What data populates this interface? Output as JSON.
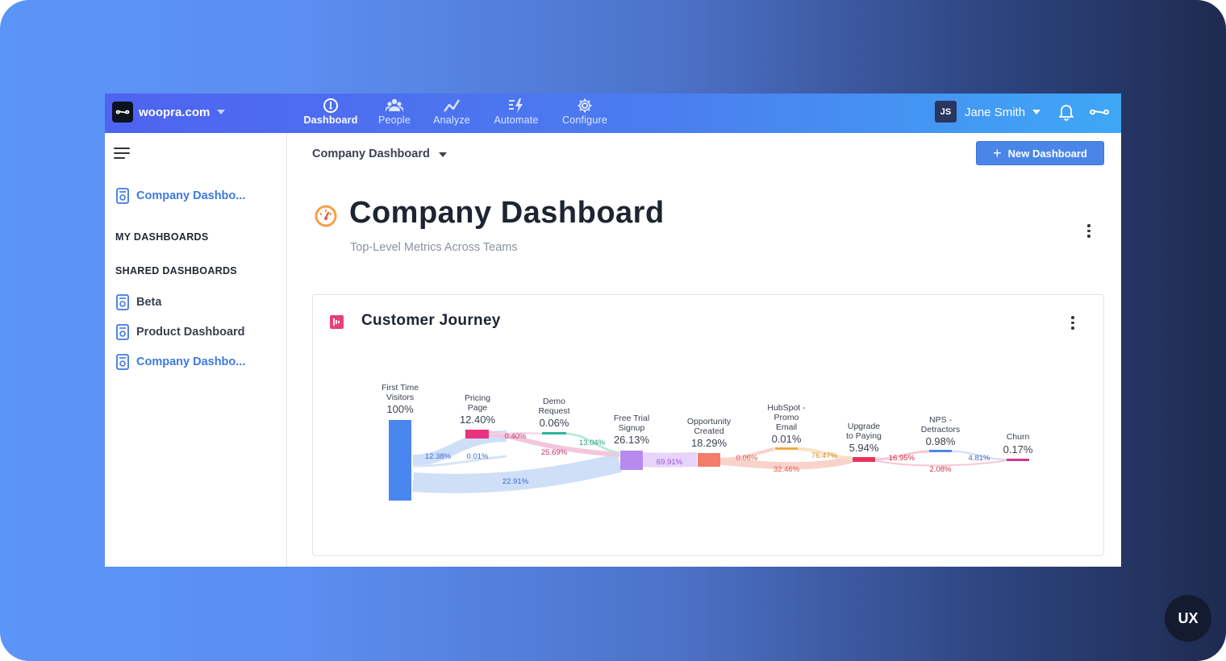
{
  "topbar": {
    "site": "woopra.com",
    "nav": [
      {
        "label": "Dashboard",
        "icon": "gauge-icon"
      },
      {
        "label": "People",
        "icon": "people-icon"
      },
      {
        "label": "Analyze",
        "icon": "trend-icon"
      },
      {
        "label": "Automate",
        "icon": "bolt-icon"
      },
      {
        "label": "Configure",
        "icon": "gear-icon"
      }
    ],
    "user_initials": "JS",
    "user_name": "Jane Smith"
  },
  "sidebar": {
    "current": "Company Dashbo...",
    "my_dashboards": "MY DASHBOARDS",
    "shared_dashboards": "SHARED DASHBOARDS",
    "items": [
      "Beta",
      "Product Dashboard",
      "Company Dashbo..."
    ]
  },
  "header": {
    "breadcrumb": "Company Dashboard",
    "new_button": "New Dashboard",
    "title": "Company Dashboard",
    "subtitle": "Top-Level Metrics Across Teams"
  },
  "card": {
    "title": "Customer Journey"
  },
  "badge": "UX",
  "colors": {
    "accent": "#4a86e8",
    "topbar_start": "#4e63f0",
    "topbar_end": "#3fa7f5",
    "card_icon": "#e8417a"
  },
  "chart_data": {
    "type": "sankey",
    "steps": [
      {
        "name": [
          "First Time",
          "Visitors"
        ],
        "value": "100%",
        "color": "#4a86f0"
      },
      {
        "name": [
          "Pricing",
          "Page"
        ],
        "value": "12.40%",
        "color": "#e8337e"
      },
      {
        "name": [
          "Demo",
          "Request"
        ],
        "value": "0.06%",
        "color": "#2fb59a"
      },
      {
        "name": [
          "Free Trial",
          "Signup"
        ],
        "value": "26.13%",
        "color": "#b78af0"
      },
      {
        "name": [
          "Opportunity",
          "Created"
        ],
        "value": "18.29%",
        "color": "#f47c6a"
      },
      {
        "name": [
          "HubSpot -",
          "Promo",
          "Email"
        ],
        "value": "0.01%",
        "color": "#f5a742"
      },
      {
        "name": [
          "Upgrade",
          "to Paying"
        ],
        "value": "5.94%",
        "color": "#e8335a"
      },
      {
        "name": [
          "NPS -",
          "Detractors"
        ],
        "value": "0.98%",
        "color": "#4a86f0"
      },
      {
        "name": [
          "Churn"
        ],
        "value": "0.17%",
        "color": "#d8338a"
      }
    ],
    "flows": [
      {
        "label": "12.38%",
        "color": "#3f6ad0"
      },
      {
        "label": "0.01%",
        "color": "#3f6ad0"
      },
      {
        "label": "22.91%",
        "color": "#3f6ad0"
      },
      {
        "label": "0.40%",
        "color": "#c0306c"
      },
      {
        "label": "25.69%",
        "color": "#c0306c"
      },
      {
        "label": "13.04%",
        "color": "#20a088"
      },
      {
        "label": "69.91%",
        "color": "#9a52d8"
      },
      {
        "label": "0.06%",
        "color": "#e05a48"
      },
      {
        "label": "32.46%",
        "color": "#e05a48"
      },
      {
        "label": "76.47%",
        "color": "#d08a20"
      },
      {
        "label": "16.95%",
        "color": "#c8304a"
      },
      {
        "label": "2.08%",
        "color": "#c8304a"
      },
      {
        "label": "4.81%",
        "color": "#3f6ad0"
      }
    ]
  }
}
